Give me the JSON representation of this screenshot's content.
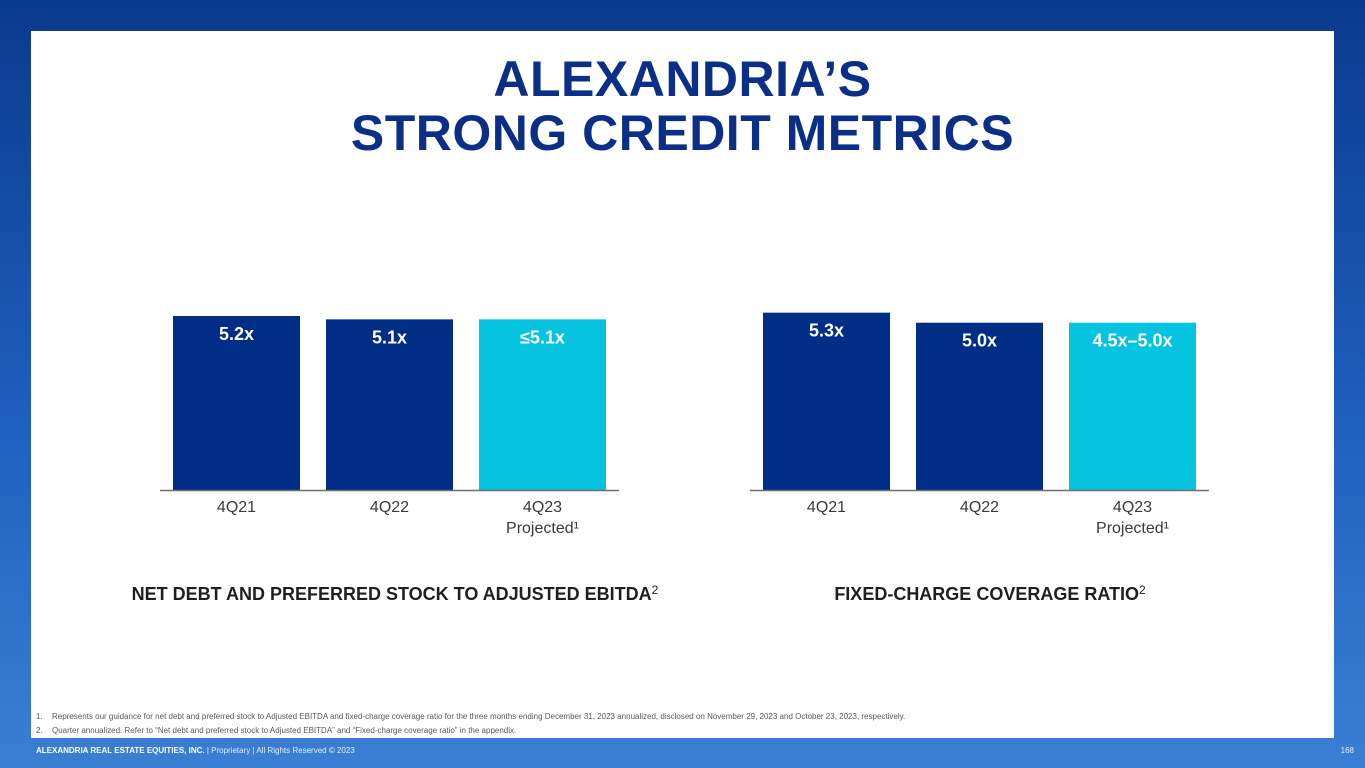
{
  "slide": {
    "title_line1": "ALEXANDRIA’S",
    "title_line2": "STRONG CREDIT METRICS"
  },
  "colors": {
    "bar_dark": "#002d85",
    "bar_light": "#06c3df",
    "title": "#0b2f86"
  },
  "chart_data": [
    {
      "type": "bar",
      "title": "NET DEBT AND PREFERRED STOCK TO ADJUSTED EBITDA",
      "title_superscript": "2",
      "categories": [
        "4Q21",
        "4Q22",
        "4Q23"
      ],
      "category_sublabels": [
        "",
        "",
        "Projected¹"
      ],
      "values": [
        5.2,
        5.1,
        5.1
      ],
      "data_labels": [
        "5.2x",
        "5.1x",
        "≤5.1x"
      ],
      "bar_colors": [
        "#002d85",
        "#002d85",
        "#06c3df"
      ]
    },
    {
      "type": "bar",
      "title": "FIXED-CHARGE COVERAGE RATIO",
      "title_superscript": "2",
      "categories": [
        "4Q21",
        "4Q22",
        "4Q23"
      ],
      "category_sublabels": [
        "",
        "",
        "Projected¹"
      ],
      "values": [
        5.3,
        5.0,
        5.0
      ],
      "data_labels": [
        "5.3x",
        "5.0x",
        "4.5x–5.0x"
      ],
      "bar_colors": [
        "#002d85",
        "#002d85",
        "#06c3df"
      ]
    }
  ],
  "footnotes": [
    {
      "num": "1.",
      "text": "Represents our guidance for net debt and preferred stock to Adjusted EBITDA and fixed-charge coverage ratio for the three months ending December 31, 2023 annualized, disclosed on November 29, 2023 and October 23, 2023, respectively."
    },
    {
      "num": "2.",
      "text": "Quarter annualized. Refer to “Net debt and preferred stock to Adjusted EBITDA” and “Fixed-charge coverage ratio” in the appendix."
    }
  ],
  "footer": {
    "company": "ALEXANDRIA REAL ESTATE EQUITIES, INC.",
    "rest": " | Proprietary | All Rights Reserved © 2023",
    "page": "168"
  }
}
